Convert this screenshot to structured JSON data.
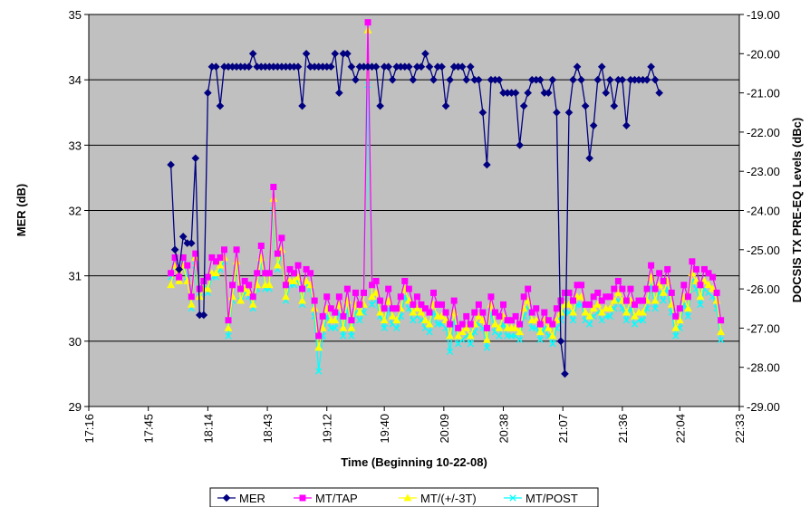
{
  "chart_data": {
    "type": "line",
    "xlabel": "Time (Beginning 10-22-08)",
    "ylabel": "MER (dB)",
    "y2label": "DOCSIS TX PRE-EQ Levels (dBc)",
    "x_ticks": [
      "17:16",
      "17:45",
      "18:14",
      "18:43",
      "19:12",
      "19:40",
      "20:09",
      "20:38",
      "21:07",
      "21:36",
      "22:04",
      "22:33"
    ],
    "ylim": [
      29,
      35
    ],
    "y_ticks": [
      "29",
      "30",
      "31",
      "32",
      "33",
      "34",
      "35"
    ],
    "y2lim": [
      -29,
      -19
    ],
    "y2_ticks": [
      "-19.00",
      "-20.00",
      "-21.00",
      "-22.00",
      "-23.00",
      "-24.00",
      "-25.00",
      "-26.00",
      "-27.00",
      "-28.00",
      "-29.00"
    ],
    "grid": "horizontal",
    "legend_position": "bottom",
    "plot_background": "#c0c0c0",
    "x_start_minutes": 1076,
    "x_step_minutes": 2,
    "series": [
      {
        "name": "MER",
        "axis": "left",
        "color": "#000080",
        "marker": "diamond",
        "values": [
          32.7,
          31.4,
          31.1,
          31.6,
          31.5,
          31.5,
          32.8,
          30.4,
          30.4,
          33.8,
          34.2,
          34.2,
          33.6,
          34.2,
          34.2,
          34.2,
          34.2,
          34.2,
          34.2,
          34.2,
          34.4,
          34.2,
          34.2,
          34.2,
          34.2,
          34.2,
          34.2,
          34.2,
          34.2,
          34.2,
          34.2,
          34.2,
          33.6,
          34.4,
          34.2,
          34.2,
          34.2,
          34.2,
          34.2,
          34.2,
          34.4,
          33.8,
          34.4,
          34.4,
          34.2,
          34.0,
          34.2,
          34.2,
          34.2,
          34.2,
          34.2,
          33.6,
          34.2,
          34.2,
          34.0,
          34.2,
          34.2,
          34.2,
          34.2,
          34.0,
          34.2,
          34.2,
          34.4,
          34.2,
          34.0,
          34.2,
          34.2,
          33.6,
          34.0,
          34.2,
          34.2,
          34.2,
          34.0,
          34.2,
          34.0,
          34.0,
          33.5,
          32.7,
          34.0,
          34.0,
          34.0,
          33.8,
          33.8,
          33.8,
          33.8,
          33.0,
          33.6,
          33.8,
          34.0,
          34.0,
          34.0,
          33.8,
          33.8,
          34.0,
          33.5,
          30.0,
          29.5,
          33.5,
          34.0,
          34.2,
          34.0,
          33.6,
          32.8,
          33.3,
          34.0,
          34.2,
          33.8,
          34.0,
          33.6,
          34.0,
          34.0,
          33.3,
          34.0,
          34.0,
          34.0,
          34.0,
          34.0,
          34.2,
          34.0,
          33.8
        ]
      },
      {
        "name": "MT/TAP",
        "axis": "right",
        "color": "#ff00ff",
        "marker": "square",
        "values": [
          -25.6,
          -25.2,
          -25.7,
          -25.2,
          -25.4,
          -26.2,
          -25.1,
          -26.0,
          -25.8,
          -25.7,
          -25.2,
          -25.3,
          -25.2,
          -25.0,
          -26.8,
          -25.9,
          -25.0,
          -26.0,
          -25.8,
          -25.9,
          -26.2,
          -25.6,
          -24.9,
          -25.6,
          -25.6,
          -23.4,
          -25.1,
          -24.7,
          -25.9,
          -25.5,
          -25.6,
          -25.4,
          -26.0,
          -25.5,
          -25.6,
          -26.3,
          -27.2,
          -26.7,
          -26.2,
          -26.5,
          -26.6,
          -26.2,
          -26.7,
          -26.0,
          -26.8,
          -26.1,
          -26.4,
          -26.1,
          -19.2,
          -25.9,
          -25.8,
          -26.3,
          -26.5,
          -26.0,
          -26.5,
          -26.5,
          -26.2,
          -25.8,
          -26.0,
          -26.4,
          -26.2,
          -26.4,
          -26.5,
          -26.6,
          -26.1,
          -26.4,
          -26.4,
          -26.6,
          -26.9,
          -26.3,
          -27.0,
          -26.9,
          -26.7,
          -26.9,
          -26.6,
          -26.4,
          -26.6,
          -27.0,
          -26.2,
          -26.6,
          -26.7,
          -26.4,
          -26.8,
          -26.8,
          -26.7,
          -26.9,
          -26.2,
          -26.0,
          -26.6,
          -26.5,
          -26.9,
          -26.6,
          -26.8,
          -26.9,
          -26.5,
          -26.3,
          -26.1,
          -26.1,
          -26.3,
          -25.9,
          -25.9,
          -26.4,
          -26.4,
          -26.2,
          -26.1,
          -26.3,
          -26.2,
          -26.2,
          -26.0,
          -25.8,
          -26.0,
          -26.3,
          -26.0,
          -26.4,
          -26.3,
          -26.3,
          -26.0,
          -25.4,
          -26.0,
          -25.6,
          -25.8,
          -25.5,
          -26.1,
          -26.7,
          -26.5,
          -25.9,
          -26.2,
          -25.3,
          -25.5,
          -25.9,
          -25.5,
          -25.6,
          -25.7,
          -26.1,
          -26.8
        ]
      },
      {
        "name": "MT/(+/-3T)",
        "axis": "right",
        "color": "#ffff00",
        "marker": "triangle",
        "values": [
          -25.9,
          -25.4,
          -25.8,
          -25.4,
          -25.8,
          -26.4,
          -25.2,
          -26.2,
          -26.0,
          -26.0,
          -25.6,
          -25.6,
          -25.4,
          -25.2,
          -27.0,
          -26.2,
          -25.3,
          -26.3,
          -26.0,
          -26.1,
          -26.4,
          -25.9,
          -25.2,
          -25.9,
          -25.9,
          -23.7,
          -25.4,
          -25.0,
          -26.2,
          -25.8,
          -25.8,
          -25.7,
          -26.3,
          -25.8,
          -25.9,
          -26.5,
          -27.5,
          -27.0,
          -26.5,
          -26.8,
          -26.8,
          -26.4,
          -27.0,
          -26.3,
          -27.0,
          -26.4,
          -26.6,
          -26.4,
          -19.4,
          -26.2,
          -26.1,
          -26.6,
          -26.8,
          -26.3,
          -26.7,
          -26.8,
          -26.5,
          -26.0,
          -26.3,
          -26.6,
          -26.5,
          -26.6,
          -26.8,
          -26.9,
          -26.4,
          -26.7,
          -26.7,
          -26.8,
          -27.2,
          -26.6,
          -27.2,
          -27.1,
          -27.0,
          -27.2,
          -26.9,
          -26.7,
          -26.8,
          -27.3,
          -26.4,
          -26.9,
          -27.0,
          -26.7,
          -27.0,
          -27.0,
          -27.0,
          -27.1,
          -26.5,
          -26.3,
          -26.8,
          -26.8,
          -27.1,
          -26.8,
          -27.0,
          -27.2,
          -26.8,
          -26.6,
          -26.4,
          -26.4,
          -26.6,
          -26.2,
          -26.2,
          -26.6,
          -26.7,
          -26.5,
          -26.4,
          -26.6,
          -26.5,
          -26.5,
          -26.3,
          -26.1,
          -26.3,
          -26.6,
          -26.3,
          -26.7,
          -26.6,
          -26.6,
          -26.3,
          -25.7,
          -26.3,
          -25.9,
          -26.1,
          -25.8,
          -26.4,
          -27.0,
          -26.8,
          -26.2,
          -26.5,
          -25.6,
          -25.8,
          -26.2,
          -25.8,
          -25.9,
          -26.0,
          -26.3,
          -27.1
        ]
      },
      {
        "name": "MT/POST",
        "axis": "right",
        "color": "#00ffff",
        "marker": "x",
        "values": [
          -25.7,
          -25.3,
          -25.8,
          -25.3,
          -25.7,
          -26.5,
          -25.4,
          -26.2,
          -26.0,
          -26.1,
          -25.7,
          -25.7,
          -25.5,
          -25.3,
          -27.2,
          -26.3,
          -25.4,
          -26.3,
          -26.1,
          -26.2,
          -26.5,
          -26.0,
          -25.3,
          -26.0,
          -26.0,
          -24.0,
          -25.5,
          -25.1,
          -26.3,
          -25.9,
          -25.9,
          -25.8,
          -26.4,
          -25.9,
          -26.0,
          -26.7,
          -28.1,
          -27.2,
          -26.7,
          -27.0,
          -27.0,
          -26.6,
          -27.2,
          -26.5,
          -27.2,
          -26.6,
          -26.8,
          -26.6,
          -20.8,
          -26.4,
          -26.3,
          -26.7,
          -27.0,
          -26.5,
          -26.9,
          -27.0,
          -26.7,
          -26.2,
          -26.5,
          -26.8,
          -26.7,
          -26.8,
          -27.0,
          -27.1,
          -26.6,
          -26.9,
          -26.9,
          -27.0,
          -27.6,
          -26.8,
          -27.4,
          -27.3,
          -27.2,
          -27.4,
          -27.1,
          -26.9,
          -27.0,
          -27.5,
          -26.6,
          -27.1,
          -27.2,
          -26.9,
          -27.2,
          -27.2,
          -27.2,
          -27.3,
          -26.7,
          -26.5,
          -27.0,
          -27.0,
          -27.3,
          -27.0,
          -27.2,
          -27.4,
          -27.0,
          -26.8,
          -26.6,
          -26.6,
          -26.8,
          -26.4,
          -26.4,
          -26.8,
          -26.9,
          -26.7,
          -26.6,
          -26.8,
          -26.7,
          -26.7,
          -26.5,
          -26.3,
          -26.5,
          -26.8,
          -26.5,
          -26.9,
          -26.8,
          -26.8,
          -26.5,
          -25.9,
          -26.5,
          -26.1,
          -26.3,
          -26.0,
          -26.6,
          -27.2,
          -27.0,
          -26.4,
          -26.7,
          -25.8,
          -26.0,
          -26.4,
          -26.0,
          -26.1,
          -26.2,
          -26.5,
          -27.3
        ]
      }
    ]
  }
}
